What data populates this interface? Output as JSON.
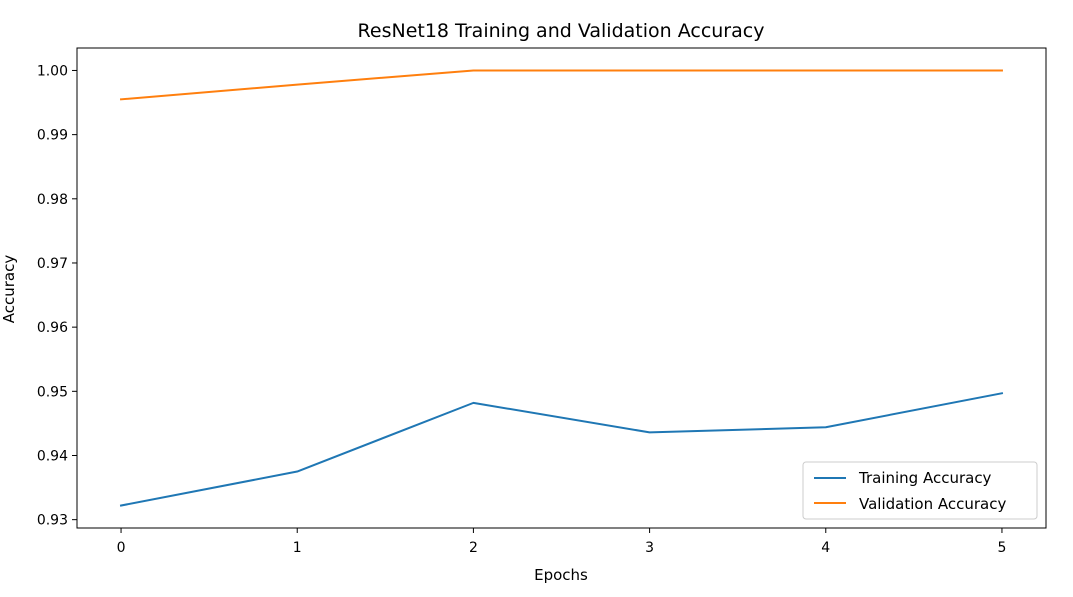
{
  "chart_data": {
    "type": "line",
    "title": "ResNet18 Training and Validation Accuracy",
    "xlabel": "Epochs",
    "ylabel": "Accuracy",
    "x": [
      0,
      1,
      2,
      3,
      4,
      5
    ],
    "xlim": [
      -0.25,
      5.25
    ],
    "ylim": [
      0.9287,
      1.0035
    ],
    "xticks": [
      0,
      1,
      2,
      3,
      4,
      5
    ],
    "yticks": [
      0.93,
      0.94,
      0.95,
      0.96,
      0.97,
      0.98,
      0.99,
      1.0
    ],
    "yticks_labels": [
      "0.93",
      "0.94",
      "0.95",
      "0.96",
      "0.97",
      "0.98",
      "0.99",
      "1.00"
    ],
    "grid": false,
    "legend_position": "lower-right",
    "series": [
      {
        "name": "Training Accuracy",
        "color": "#1f77b4",
        "values": [
          0.9322,
          0.9375,
          0.9482,
          0.9436,
          0.9444,
          0.9497
        ]
      },
      {
        "name": "Validation Accuracy",
        "color": "#ff7f0e",
        "values": [
          0.9955,
          0.9978,
          1.0,
          1.0,
          1.0,
          1.0
        ]
      }
    ]
  }
}
